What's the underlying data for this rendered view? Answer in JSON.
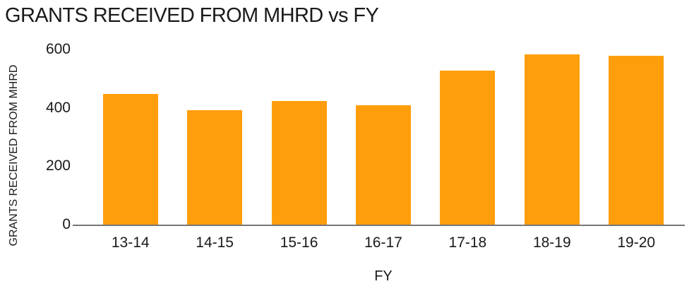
{
  "colors": {
    "bar": "#FF9E0C",
    "axis": "#777777",
    "text": "#1A1A1A",
    "background": "#FFFFFF"
  },
  "chart_data": {
    "type": "bar",
    "title": "GRANTS RECEIVED FROM MHRD vs FY",
    "xlabel": "FY",
    "ylabel": "GRANTS RECEIVED FROM MHRD",
    "categories": [
      "13-14",
      "14-15",
      "15-16",
      "16-17",
      "17-18",
      "18-19",
      "19-20"
    ],
    "values": [
      448,
      393,
      423,
      408,
      527,
      583,
      578
    ],
    "yticks": [
      0,
      200,
      400,
      600
    ],
    "ylim": [
      0,
      600
    ],
    "grid": "off",
    "legend": "none",
    "bar_color": "#FF9E0C"
  }
}
